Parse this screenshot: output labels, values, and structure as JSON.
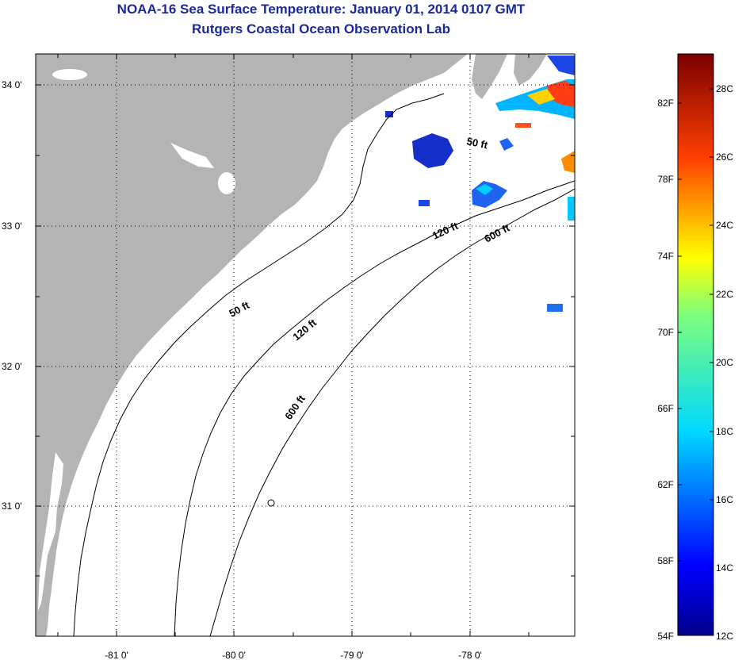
{
  "header": {
    "title": "NOAA-16 Sea Surface Temperature:  January 01, 2014 0107 GMT",
    "subtitle": "Rutgers Coastal Ocean Observation Lab"
  },
  "map": {
    "lon_ticks": [
      "-81 0'",
      "-80 0'",
      "-79 0'",
      "-78 0'"
    ],
    "lat_ticks": [
      "34 0'",
      "33 0'",
      "32 0'",
      "31 0'"
    ],
    "contour_labels": [
      "50 ft",
      "50 ft",
      "120 ft",
      "120 ft",
      "600 ft",
      "600 ft"
    ],
    "land_color": "#b4b4b4",
    "ocean_color": "#ffffff"
  },
  "colorbar": {
    "fahrenheit_labels": [
      "82F",
      "78F",
      "74F",
      "70F",
      "66F",
      "62F",
      "58F",
      "54F"
    ],
    "celsius_labels": [
      "28C",
      "26C",
      "24C",
      "22C",
      "20C",
      "18C",
      "16C",
      "14C",
      "12C"
    ]
  }
}
